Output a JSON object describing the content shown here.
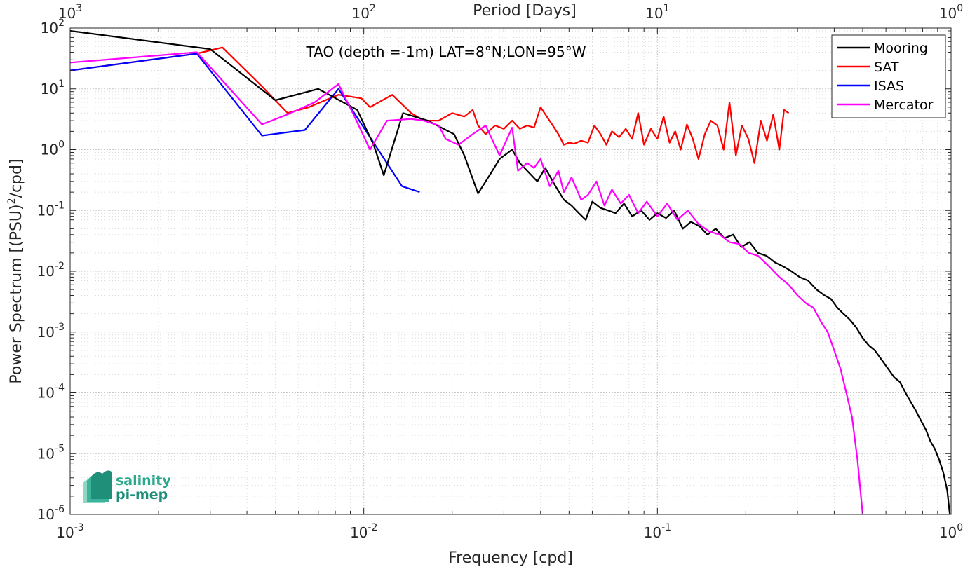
{
  "chart_data": {
    "type": "line",
    "title": "TAO (depth =-1m) LAT=8°N;LON=95°W",
    "xlabel": "Frequency [cpd]",
    "ylabel": "Power Spectrum [(PSU)",
    "ylabel_sup": "2",
    "ylabel_end": "/cpd]",
    "x2label": "Period [Days]",
    "xscale": "log",
    "yscale": "log",
    "xlim": [
      0.001,
      1
    ],
    "ylim": [
      1e-06,
      100
    ],
    "grid": true,
    "legend_position": "top-right",
    "x_ticks": [
      {
        "value": 0.001,
        "base": "10",
        "exp": "-3"
      },
      {
        "value": 0.01,
        "base": "10",
        "exp": "-2"
      },
      {
        "value": 0.1,
        "base": "10",
        "exp": "-1"
      },
      {
        "value": 1,
        "base": "10",
        "exp": "0"
      }
    ],
    "x2_ticks": [
      {
        "value": 0.001,
        "base": "10",
        "exp": "3"
      },
      {
        "value": 0.01,
        "base": "10",
        "exp": "2"
      },
      {
        "value": 0.1,
        "base": "10",
        "exp": "1"
      },
      {
        "value": 1,
        "base": "10",
        "exp": "0"
      }
    ],
    "y_ticks": [
      {
        "value": 100,
        "base": "10",
        "exp": "2"
      },
      {
        "value": 10,
        "base": "10",
        "exp": "1"
      },
      {
        "value": 1,
        "base": "10",
        "exp": "0"
      },
      {
        "value": 0.1,
        "base": "10",
        "exp": "-1"
      },
      {
        "value": 0.01,
        "base": "10",
        "exp": "-2"
      },
      {
        "value": 0.001,
        "base": "10",
        "exp": "-3"
      },
      {
        "value": 0.0001,
        "base": "10",
        "exp": "-4"
      },
      {
        "value": 1e-05,
        "base": "10",
        "exp": "-5"
      },
      {
        "value": 1e-06,
        "base": "10",
        "exp": "-6"
      }
    ],
    "series": [
      {
        "name": "Mooring",
        "color": "#000000",
        "x": [
          0.001,
          0.003,
          0.005,
          0.007,
          0.0095,
          0.0108,
          0.0117,
          0.0136,
          0.0165,
          0.0203,
          0.022,
          0.0245,
          0.027,
          0.029,
          0.032,
          0.034,
          0.036,
          0.039,
          0.0415,
          0.045,
          0.048,
          0.051,
          0.054,
          0.057,
          0.06,
          0.064,
          0.068,
          0.072,
          0.077,
          0.082,
          0.088,
          0.094,
          0.1,
          0.107,
          0.114,
          0.122,
          0.13,
          0.139,
          0.148,
          0.158,
          0.169,
          0.181,
          0.193,
          0.206,
          0.22,
          0.235,
          0.251,
          0.268,
          0.286,
          0.305,
          0.326,
          0.348,
          0.371,
          0.39,
          0.41,
          0.43,
          0.452,
          0.475,
          0.5,
          0.525,
          0.55,
          0.58,
          0.61,
          0.64,
          0.67,
          0.7,
          0.73,
          0.76,
          0.79,
          0.82,
          0.85,
          0.88,
          0.91,
          0.94,
          0.97,
          0.99
        ],
        "y": [
          90,
          45,
          6.5,
          10,
          4.5,
          1.2,
          0.38,
          4,
          3,
          1.8,
          0.8,
          0.19,
          0.4,
          0.7,
          1,
          0.6,
          0.45,
          0.3,
          0.5,
          0.25,
          0.15,
          0.12,
          0.09,
          0.07,
          0.14,
          0.11,
          0.1,
          0.09,
          0.13,
          0.08,
          0.1,
          0.07,
          0.09,
          0.075,
          0.1,
          0.05,
          0.065,
          0.055,
          0.04,
          0.05,
          0.035,
          0.04,
          0.025,
          0.03,
          0.02,
          0.018,
          0.014,
          0.012,
          0.01,
          0.008,
          0.007,
          0.005,
          0.004,
          0.0035,
          0.0025,
          0.002,
          0.0016,
          0.0012,
          0.0008,
          0.0006,
          0.0005,
          0.00035,
          0.00025,
          0.00018,
          0.00015,
          0.0001,
          7e-05,
          5e-05,
          3.5e-05,
          2.5e-05,
          1.6e-05,
          1.2e-05,
          8e-06,
          5e-06,
          2.5e-06,
          1e-06
        ]
      },
      {
        "name": "SAT",
        "color": "#ff0000",
        "x": [
          0.001,
          0.0027,
          0.0033,
          0.0045,
          0.0055,
          0.0065,
          0.0082,
          0.0098,
          0.0105,
          0.0125,
          0.0145,
          0.016,
          0.018,
          0.02,
          0.022,
          0.0235,
          0.0245,
          0.026,
          0.028,
          0.03,
          0.032,
          0.034,
          0.036,
          0.038,
          0.04,
          0.042,
          0.044,
          0.046,
          0.048,
          0.05,
          0.052,
          0.055,
          0.058,
          0.061,
          0.064,
          0.067,
          0.07,
          0.074,
          0.078,
          0.082,
          0.086,
          0.09,
          0.095,
          0.1,
          0.105,
          0.11,
          0.115,
          0.12,
          0.126,
          0.132,
          0.138,
          0.145,
          0.152,
          0.16,
          0.168,
          0.176,
          0.185,
          0.194,
          0.204,
          0.214,
          0.225,
          0.236,
          0.248,
          0.26,
          0.27,
          0.28
        ],
        "y": [
          20,
          38,
          48,
          11,
          4,
          5,
          8,
          7,
          5,
          8,
          4,
          3,
          3,
          4,
          3.5,
          4.5,
          2.5,
          1.8,
          2.5,
          2.2,
          3,
          2.2,
          2.5,
          2.3,
          5,
          3.5,
          2.5,
          1.8,
          1.2,
          1.3,
          1.25,
          1.4,
          1.3,
          2.5,
          1.8,
          1.2,
          2,
          1.6,
          2.2,
          1.5,
          4,
          1.2,
          2.2,
          1.5,
          3.5,
          1.3,
          2,
          1,
          2.6,
          1.5,
          0.7,
          1.8,
          3,
          2.5,
          1,
          6,
          0.8,
          2.5,
          1.5,
          0.6,
          3,
          1.4,
          3.8,
          1,
          4.5,
          4
        ]
      },
      {
        "name": "ISAS",
        "color": "#0000ff",
        "x": [
          0.001,
          0.0027,
          0.0045,
          0.0063,
          0.0082,
          0.0135,
          0.0155
        ],
        "y": [
          20,
          38,
          1.7,
          2.1,
          10,
          0.25,
          0.2
        ]
      },
      {
        "name": "Mercator",
        "color": "#ff00ff",
        "x": [
          0.001,
          0.0027,
          0.0045,
          0.0055,
          0.0068,
          0.0082,
          0.0093,
          0.0105,
          0.012,
          0.0145,
          0.016,
          0.018,
          0.019,
          0.021,
          0.0235,
          0.026,
          0.029,
          0.032,
          0.0335,
          0.036,
          0.038,
          0.04,
          0.043,
          0.046,
          0.048,
          0.051,
          0.055,
          0.058,
          0.062,
          0.066,
          0.07,
          0.075,
          0.08,
          0.086,
          0.092,
          0.1,
          0.108,
          0.117,
          0.127,
          0.138,
          0.15,
          0.163,
          0.176,
          0.19,
          0.205,
          0.22,
          0.24,
          0.26,
          0.28,
          0.3,
          0.32,
          0.34,
          0.36,
          0.38,
          0.4,
          0.42,
          0.44,
          0.46,
          0.48,
          0.5
        ],
        "y": [
          27,
          40,
          2.6,
          3.8,
          6,
          12,
          3.5,
          1,
          3,
          3.2,
          3,
          2.5,
          1.5,
          1.2,
          1.8,
          2.5,
          0.8,
          2.3,
          0.45,
          0.6,
          0.5,
          0.7,
          0.25,
          0.45,
          0.2,
          0.35,
          0.15,
          0.18,
          0.3,
          0.12,
          0.22,
          0.13,
          0.18,
          0.09,
          0.14,
          0.08,
          0.13,
          0.07,
          0.1,
          0.06,
          0.045,
          0.04,
          0.03,
          0.028,
          0.02,
          0.018,
          0.012,
          0.008,
          0.006,
          0.004,
          0.003,
          0.0025,
          0.0015,
          0.001,
          0.0005,
          0.00025,
          0.0001,
          4e-05,
          8e-06,
          1e-06
        ]
      }
    ]
  },
  "logo": {
    "line1": "salinity",
    "line2": "pi-mep"
  }
}
